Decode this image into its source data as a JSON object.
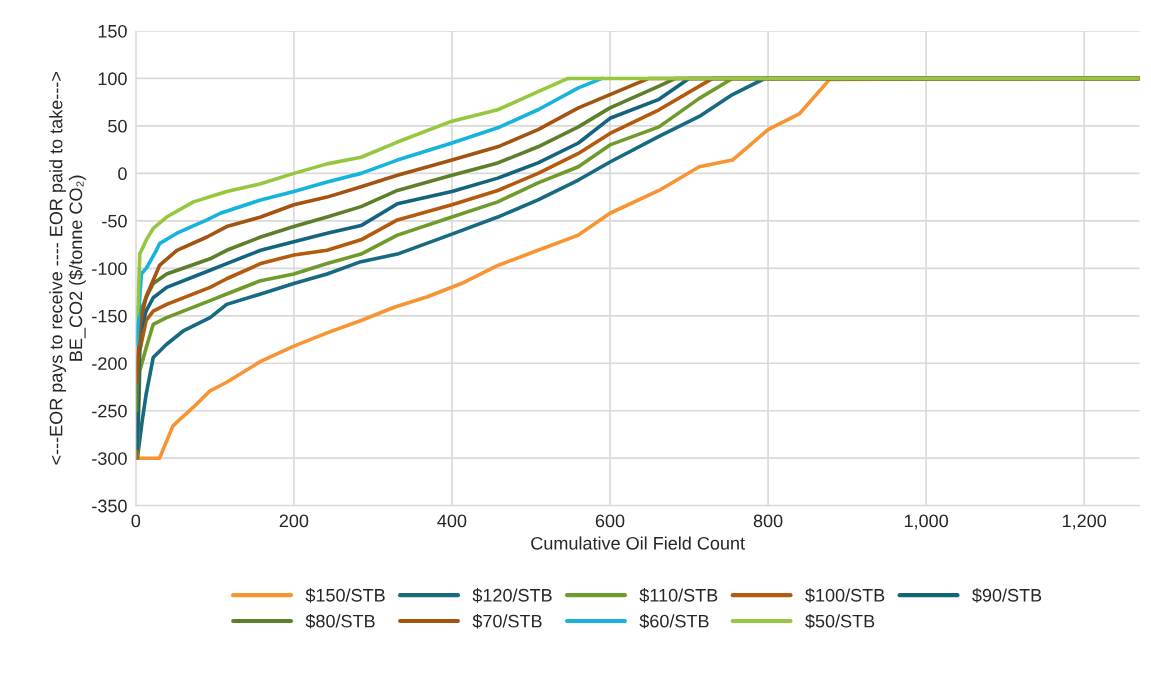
{
  "chart_data": {
    "type": "line",
    "xlabel": "Cumulative Oil Field Count",
    "ylabel": "<---EOR pays to receive ---- EOR paid to take--->\nBE_CO2 ($/tonne CO₂)",
    "xlim": [
      0,
      1270
    ],
    "xticks": [
      0,
      200,
      400,
      600,
      800,
      {
        "value": 1000,
        "label": "1,000"
      },
      {
        "value": 1200,
        "label": "1,200"
      }
    ],
    "ylim": [
      -350,
      150
    ],
    "yticks": [
      -350,
      -300,
      -250,
      -200,
      -150,
      -100,
      -50,
      0,
      50,
      100,
      150
    ],
    "grid": true,
    "legend": "bottom",
    "marker": "none",
    "line_style": "solid",
    "series": [
      {
        "name": "$150/STB",
        "color": "#f79433",
        "x": [
          0,
          30,
          35,
          47,
          60,
          77,
          94,
          115,
          158,
          200,
          242,
          285,
          327,
          369,
          412,
          458,
          509,
          560,
          600,
          662,
          713,
          755,
          800,
          840,
          878,
          1270
        ],
        "values": [
          -300,
          -300,
          -290,
          -266,
          -256,
          -243,
          -229,
          -220,
          -198,
          -182,
          -168,
          -155,
          -141,
          -130,
          -116,
          -97,
          -81,
          -65,
          -42,
          -18,
          7,
          14,
          46,
          63,
          99,
          100
        ]
      },
      {
        "name": "$120/STB",
        "color": "#176a82",
        "x": [
          2,
          8,
          13,
          22,
          39,
          60,
          94,
          115,
          158,
          200,
          242,
          285,
          331,
          400,
          458,
          509,
          560,
          600,
          662,
          713,
          755,
          796,
          1270
        ],
        "values": [
          -300,
          -261,
          -233,
          -194,
          -180,
          -166,
          -152,
          -138,
          -127,
          -116,
          -106,
          -93,
          -85,
          -64,
          -46,
          -28,
          -7,
          12,
          39,
          60,
          83,
          100,
          100
        ]
      },
      {
        "name": "$110/STB",
        "color": "#6f9a2c",
        "x": [
          2,
          5,
          13,
          22,
          39,
          94,
          115,
          158,
          200,
          242,
          285,
          331,
          400,
          458,
          509,
          560,
          600,
          662,
          713,
          755,
          1270
        ],
        "values": [
          -300,
          -208,
          -184,
          -159,
          -152,
          -134,
          -127,
          -113,
          -106,
          -95,
          -85,
          -65,
          -46,
          -30,
          -10,
          7,
          30,
          49,
          79,
          100,
          100
        ]
      },
      {
        "name": "$100/STB",
        "color": "#b35a0c",
        "x": [
          1,
          5,
          13,
          22,
          39,
          94,
          115,
          158,
          200,
          242,
          285,
          331,
          400,
          458,
          509,
          560,
          600,
          662,
          730,
          1270
        ],
        "values": [
          -300,
          -187,
          -155,
          -145,
          -138,
          -120,
          -111,
          -95,
          -86,
          -81,
          -70,
          -49,
          -33,
          -18,
          0,
          21,
          42,
          67,
          100,
          100
        ]
      },
      {
        "name": "$90/STB",
        "color": "#13657d",
        "x": [
          2,
          5,
          13,
          22,
          39,
          94,
          115,
          158,
          200,
          242,
          285,
          331,
          400,
          458,
          509,
          560,
          600,
          662,
          700,
          1270
        ],
        "values": [
          -290,
          -169,
          -145,
          -131,
          -120,
          -102,
          -95,
          -81,
          -72,
          -63,
          -55,
          -32,
          -19,
          -5,
          11,
          32,
          58,
          78,
          100,
          100
        ]
      },
      {
        "name": "$80/STB",
        "color": "#5e7f2a",
        "x": [
          1,
          5,
          13,
          22,
          39,
          94,
          115,
          158,
          200,
          242,
          285,
          331,
          400,
          458,
          509,
          560,
          600,
          662,
          683,
          1270
        ],
        "values": [
          -250,
          -148,
          -131,
          -116,
          -106,
          -90,
          -81,
          -67,
          -56,
          -46,
          -35,
          -18,
          -2,
          11,
          28,
          49,
          69,
          92,
          100,
          100
        ]
      },
      {
        "name": "$70/STB",
        "color": "#a35410",
        "x": [
          1,
          5,
          13,
          30,
          52,
          90,
          115,
          158,
          200,
          242,
          285,
          331,
          400,
          458,
          509,
          560,
          600,
          649,
          1270
        ],
        "values": [
          -220,
          -160,
          -130,
          -97,
          -81,
          -67,
          -56,
          -46,
          -33,
          -25,
          -14,
          -2,
          14,
          28,
          46,
          69,
          83,
          100,
          100
        ]
      },
      {
        "name": "$60/STB",
        "color": "#16b3dc",
        "x": [
          1,
          7,
          14,
          26,
          30,
          52,
          90,
          107,
          158,
          200,
          242,
          285,
          331,
          400,
          458,
          509,
          560,
          590
        ],
        "values": [
          -180,
          -106,
          -99,
          -81,
          -74,
          -63,
          -49,
          -42,
          -28,
          -19,
          -9,
          0,
          14,
          32,
          48,
          67,
          90,
          100
        ]
      },
      {
        "name": "$50/STB",
        "color": "#95c83f",
        "x": [
          1,
          3,
          5,
          14,
          22,
          39,
          73,
          115,
          158,
          200,
          242,
          285,
          331,
          400,
          458,
          509,
          547,
          1270
        ],
        "values": [
          -150,
          -138,
          -85,
          -69,
          -58,
          -46,
          -30,
          -19,
          -11,
          0,
          10,
          17,
          33,
          55,
          67,
          86,
          100,
          100
        ]
      }
    ]
  }
}
